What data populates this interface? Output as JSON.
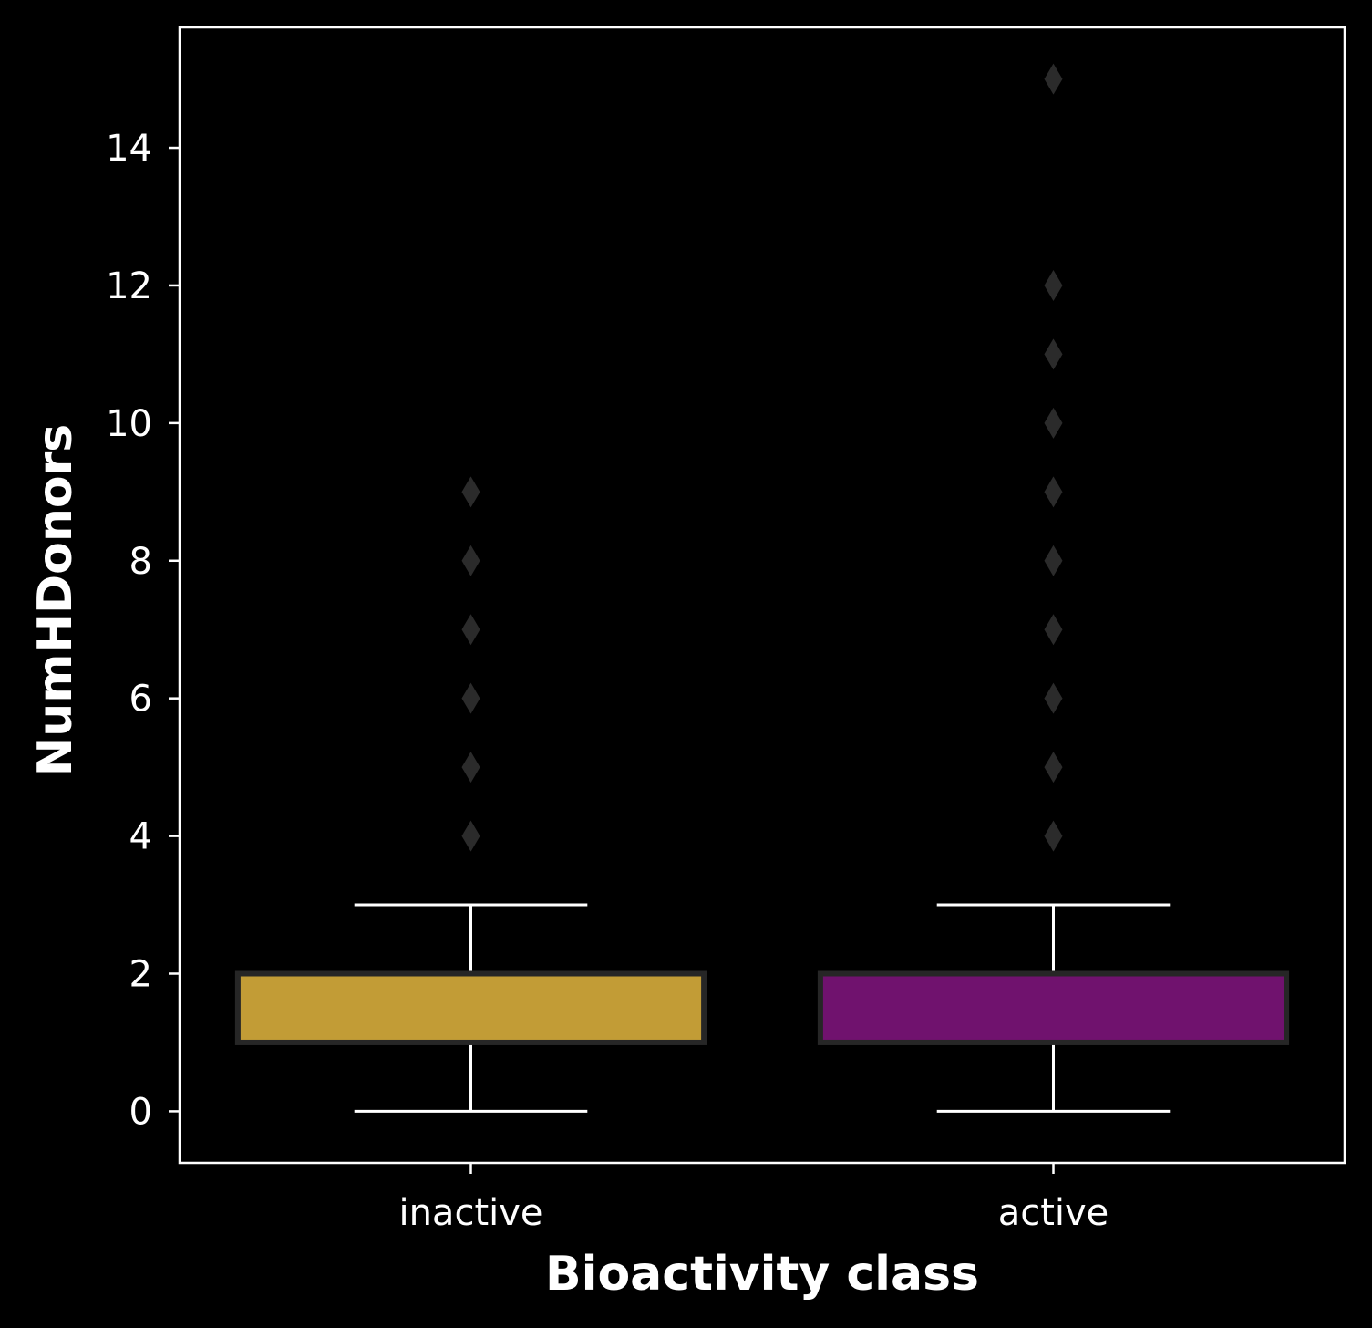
{
  "chart_data": {
    "type": "box",
    "title": "",
    "xlabel": "Bioactivity class",
    "ylabel": "NumHDonors",
    "categories": [
      "inactive",
      "active"
    ],
    "ylim": [
      -0.75,
      15.75
    ],
    "yticks": [
      0,
      2,
      4,
      6,
      8,
      10,
      12,
      14
    ],
    "grid": false,
    "legend": "none",
    "background_color": "#000000",
    "axes_color": "#ffffff",
    "outlier_color": "#2b2b2b",
    "series": [
      {
        "category": "inactive",
        "color": "#c29c36",
        "whisker_low": 0,
        "q1": 1,
        "median": 2,
        "q3": 2,
        "whisker_high": 3,
        "outliers": [
          4,
          5,
          6,
          7,
          8,
          9
        ]
      },
      {
        "category": "active",
        "color": "#70126e",
        "whisker_low": 0,
        "q1": 1,
        "median": 2,
        "q3": 2,
        "whisker_high": 3,
        "outliers": [
          4,
          5,
          6,
          7,
          8,
          9,
          10,
          11,
          12,
          15
        ]
      }
    ]
  }
}
